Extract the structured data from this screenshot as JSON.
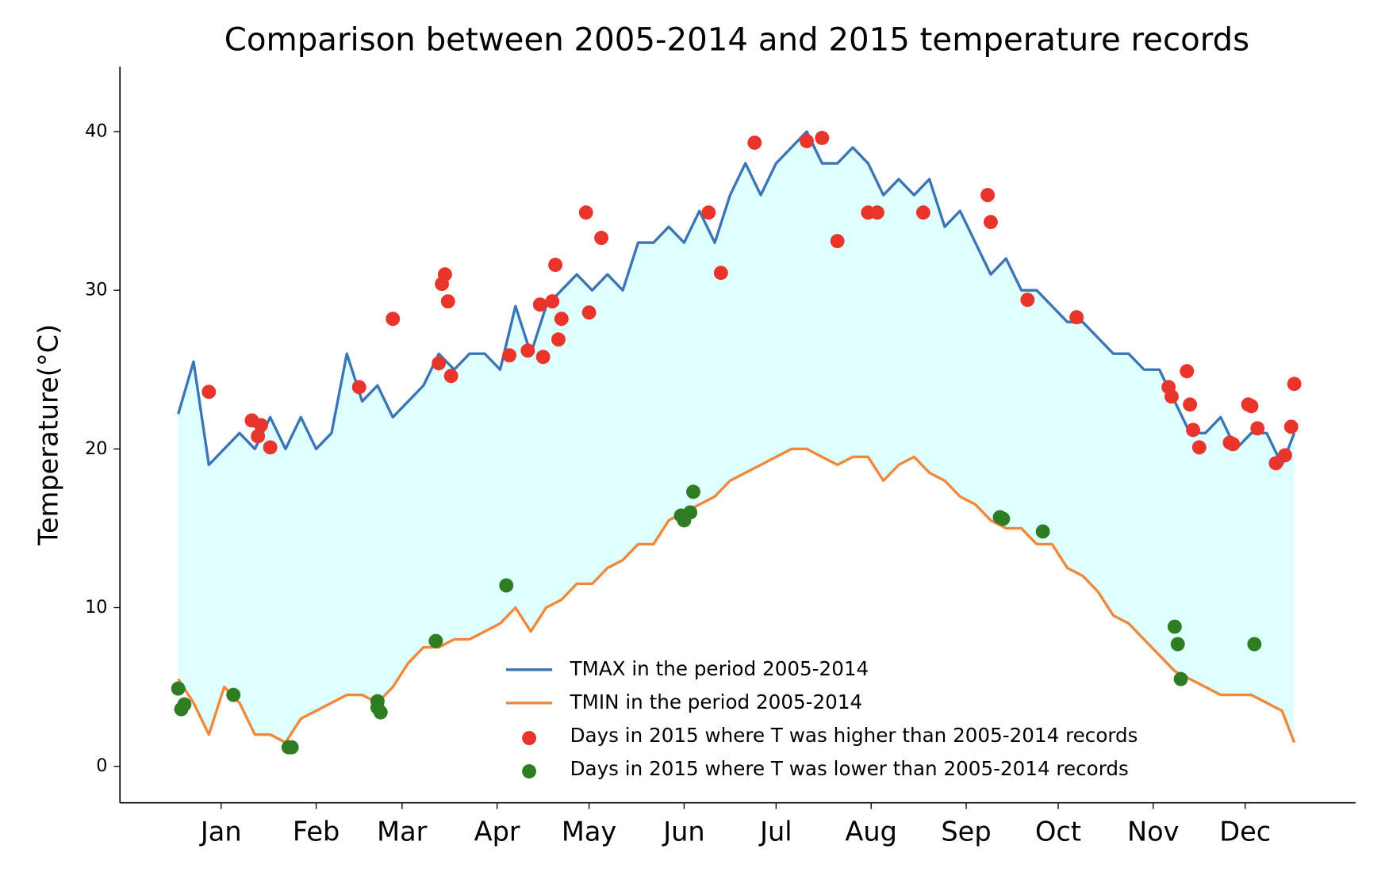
{
  "chart_data": {
    "type": "line",
    "title": "Comparison between 2005-2014 and 2015 temperature records",
    "y_label": "Temperature(°C)",
    "xlim": [
      -18,
      385
    ],
    "ylim": [
      -2.3,
      44.1
    ],
    "yticks": [
      0,
      10,
      20,
      30,
      40
    ],
    "xticks": [
      {
        "value": 15,
        "label": "Jan"
      },
      {
        "value": 46,
        "label": "Feb"
      },
      {
        "value": 74,
        "label": "Mar"
      },
      {
        "value": 105,
        "label": "Apr"
      },
      {
        "value": 135,
        "label": "May"
      },
      {
        "value": 166,
        "label": "Jun"
      },
      {
        "value": 196,
        "label": "Jul"
      },
      {
        "value": 227,
        "label": "Aug"
      },
      {
        "value": 258,
        "label": "Sep"
      },
      {
        "value": 288,
        "label": "Oct"
      },
      {
        "value": 319,
        "label": "Nov"
      },
      {
        "value": 349,
        "label": "Dec"
      }
    ],
    "fill_between_color": "#e0ffff",
    "legend": "lower center",
    "series": [
      {
        "name": "TMAX in the period 2005-2014",
        "type": "line",
        "color": "#3a76b5",
        "x": [
          1,
          6,
          11,
          16,
          21,
          26,
          31,
          36,
          41,
          46,
          51,
          56,
          61,
          66,
          71,
          76,
          81,
          86,
          91,
          96,
          101,
          106,
          111,
          116,
          121,
          126,
          131,
          136,
          141,
          146,
          151,
          156,
          161,
          166,
          171,
          176,
          181,
          186,
          191,
          196,
          201,
          206,
          211,
          216,
          221,
          226,
          231,
          236,
          241,
          246,
          251,
          256,
          261,
          266,
          271,
          276,
          281,
          286,
          291,
          296,
          301,
          306,
          311,
          316,
          321,
          326,
          331,
          336,
          341,
          346,
          351,
          356,
          361,
          365
        ],
        "values": [
          22.2,
          25.5,
          19,
          20,
          21,
          20,
          22,
          20,
          22,
          20,
          21,
          26,
          23,
          24,
          22,
          23,
          24,
          26,
          25,
          26,
          26,
          25,
          29,
          26,
          29,
          30,
          31,
          30,
          31,
          30,
          33,
          33,
          34,
          33,
          35,
          33,
          36,
          38,
          36,
          38,
          39,
          40,
          38,
          38,
          39,
          38,
          36,
          37,
          36,
          37,
          34,
          35,
          33,
          31,
          32,
          30,
          30,
          29,
          28,
          28,
          27,
          26,
          26,
          25,
          25,
          23,
          21,
          21,
          22,
          20,
          21,
          21,
          19,
          21
        ]
      },
      {
        "name": "TMIN in the period 2005-2014",
        "type": "line",
        "color": "#f0883a",
        "x": [
          1,
          6,
          11,
          16,
          21,
          26,
          31,
          36,
          41,
          46,
          51,
          56,
          61,
          66,
          71,
          76,
          81,
          86,
          91,
          96,
          101,
          106,
          111,
          116,
          121,
          126,
          131,
          136,
          141,
          146,
          151,
          156,
          161,
          166,
          171,
          176,
          181,
          186,
          191,
          196,
          201,
          206,
          211,
          216,
          221,
          226,
          231,
          236,
          241,
          246,
          251,
          256,
          261,
          266,
          271,
          276,
          281,
          286,
          291,
          296,
          301,
          306,
          311,
          316,
          321,
          326,
          331,
          336,
          341,
          346,
          351,
          356,
          361,
          365
        ],
        "values": [
          5.5,
          4,
          2,
          5,
          4,
          2,
          2,
          1.5,
          3,
          3.5,
          4,
          4.5,
          4.5,
          4,
          5,
          6.5,
          7.5,
          7.5,
          8,
          8,
          8.5,
          9,
          10,
          8.5,
          10,
          10.5,
          11.5,
          11.5,
          12.5,
          13,
          14,
          14,
          15.5,
          16,
          16.5,
          17,
          18,
          18.5,
          19,
          19.5,
          20,
          20,
          19.5,
          19,
          19.5,
          19.5,
          18,
          19,
          19.5,
          18.5,
          18,
          17,
          16.5,
          15.5,
          15,
          15,
          14,
          14,
          12.5,
          12,
          11,
          9.5,
          9,
          8,
          7,
          6,
          5.5,
          5,
          4.5,
          4.5,
          4.5,
          4,
          3.5,
          1.5
        ]
      },
      {
        "name": "Days in 2015 where T was higher than 2005-2014 records",
        "type": "scatter",
        "color": "#e8342a",
        "x": [
          11,
          25,
          27,
          28,
          31,
          60,
          71,
          86,
          87,
          88,
          89,
          90,
          109,
          115,
          119,
          120,
          123,
          124,
          125,
          126,
          134,
          135,
          139,
          174,
          178,
          189,
          206,
          211,
          216,
          226,
          229,
          244,
          265,
          266,
          278,
          294,
          324,
          325,
          330,
          331,
          332,
          334,
          344,
          345,
          350,
          351,
          353,
          359,
          362,
          364,
          365
        ],
        "values": [
          23.6,
          21.8,
          20.8,
          21.5,
          20.1,
          23.9,
          28.2,
          25.4,
          30.4,
          31.0,
          29.3,
          24.6,
          25.9,
          26.2,
          29.1,
          25.8,
          29.3,
          31.6,
          26.9,
          28.2,
          34.9,
          28.6,
          33.3,
          34.9,
          31.1,
          39.3,
          39.4,
          39.6,
          33.1,
          34.9,
          34.9,
          34.9,
          36.0,
          34.3,
          29.4,
          28.3,
          23.9,
          23.3,
          24.9,
          22.8,
          21.2,
          20.1,
          20.4,
          20.3,
          22.8,
          22.7,
          21.3,
          19.1,
          19.6,
          21.4,
          24.1
        ]
      },
      {
        "name": "Days in 2015 where T was lower than 2005-2014 records",
        "type": "scatter",
        "color": "#2e7d23",
        "x": [
          1,
          2,
          3,
          19,
          37,
          38,
          66,
          66,
          67,
          85,
          108,
          165,
          166,
          168,
          169,
          269,
          270,
          283,
          326,
          327,
          328,
          352
        ],
        "values": [
          4.9,
          3.6,
          3.9,
          4.5,
          1.2,
          1.2,
          4.1,
          3.7,
          3.4,
          7.9,
          11.4,
          15.8,
          15.5,
          16.0,
          17.3,
          15.7,
          15.6,
          14.8,
          8.8,
          7.7,
          5.5,
          7.7
        ]
      }
    ]
  }
}
